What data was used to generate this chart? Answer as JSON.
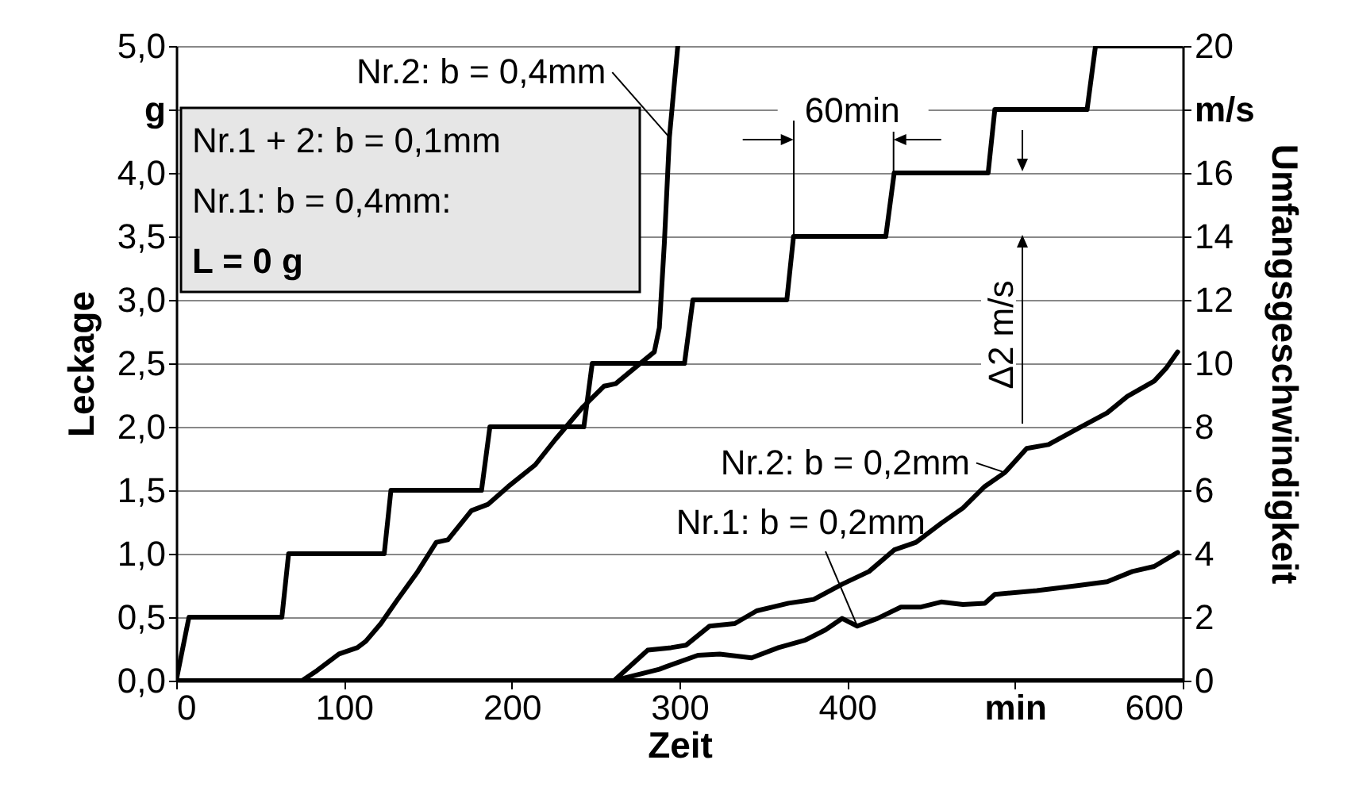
{
  "chart_data": {
    "type": "line",
    "xlabel": "Zeit",
    "ylabel": "Leckage",
    "y2label": "Umfangsgeschwindigkeit",
    "xlim": [
      0,
      600
    ],
    "xticks": [
      0,
      100,
      200,
      300,
      400,
      {
        "value": 500,
        "label": "min"
      },
      600
    ],
    "ylim": [
      0,
      5
    ],
    "yticks": [
      {
        "value": 0,
        "label": "0,0"
      },
      {
        "value": 0.5,
        "label": "0,5"
      },
      {
        "value": 1,
        "label": "1,0"
      },
      {
        "value": 1.5,
        "label": "1,5"
      },
      {
        "value": 2,
        "label": "2,0"
      },
      {
        "value": 2.5,
        "label": "2,5"
      },
      {
        "value": 3,
        "label": "3,0"
      },
      {
        "value": 3.5,
        "label": "3,5"
      },
      {
        "value": 4,
        "label": "4,0"
      },
      {
        "value": 4.5,
        "label": "g"
      },
      {
        "value": 5,
        "label": "5,0"
      }
    ],
    "y2lim": [
      0,
      20
    ],
    "y2ticks": [
      0,
      2,
      4,
      6,
      8,
      10,
      12,
      14,
      16,
      {
        "value": 18,
        "label": "m/s"
      },
      20
    ],
    "grid": "y",
    "series": [
      {
        "name": "Nr.2: b = 0,4mm",
        "color": "#000000",
        "x": [
          75,
          84,
          97,
          108,
          113,
          122,
          132,
          144,
          155,
          162,
          176,
          186,
          198,
          214,
          226,
          242,
          255,
          262,
          273,
          285,
          288,
          291,
          294,
          299
        ],
        "values": [
          0,
          0.08,
          0.21,
          0.26,
          0.31,
          0.45,
          0.64,
          0.86,
          1.09,
          1.11,
          1.34,
          1.39,
          1.53,
          1.7,
          1.9,
          2.15,
          2.32,
          2.34,
          2.46,
          2.59,
          2.78,
          3.45,
          4.28,
          5.0
        ]
      },
      {
        "name": "Nr.2: b = 0,2mm",
        "color": "#000000",
        "x": [
          261,
          276,
          281,
          295,
          304,
          318,
          333,
          346,
          365,
          380,
          397,
          413,
          428,
          441,
          456,
          469,
          482,
          494,
          507,
          520,
          538,
          555,
          567,
          583,
          590,
          597
        ],
        "values": [
          0,
          0.18,
          0.24,
          0.26,
          0.28,
          0.43,
          0.45,
          0.55,
          0.61,
          0.64,
          0.76,
          0.86,
          1.03,
          1.09,
          1.24,
          1.36,
          1.53,
          1.64,
          1.83,
          1.86,
          1.99,
          2.11,
          2.24,
          2.36,
          2.46,
          2.59
        ]
      },
      {
        "name": "Nr.1: b = 0,2mm",
        "color": "#000000",
        "x": [
          261,
          288,
          292,
          311,
          324,
          343,
          359,
          375,
          387,
          397,
          406,
          418,
          432,
          444,
          456,
          469,
          482,
          488,
          513,
          538,
          555,
          570,
          583,
          597
        ],
        "values": [
          0,
          0.09,
          0.11,
          0.2,
          0.21,
          0.18,
          0.26,
          0.32,
          0.4,
          0.49,
          0.43,
          0.49,
          0.58,
          0.58,
          0.62,
          0.6,
          0.61,
          0.68,
          0.71,
          0.75,
          0.78,
          0.86,
          0.9,
          1.01
        ]
      },
      {
        "color": "#000000",
        "x": [
          0,
          600
        ],
        "values": [
          0,
          0
        ]
      },
      {
        "color": "#000000",
        "axis": "y2",
        "x": [
          0,
          7.6,
          63,
          67,
          124,
          128,
          182,
          187,
          243,
          248,
          303,
          308,
          364,
          368,
          423,
          428,
          484,
          488,
          543,
          548,
          600
        ],
        "values": [
          0,
          2,
          2,
          4,
          4,
          6,
          6,
          8,
          8,
          10,
          10,
          12,
          12,
          14,
          14,
          16,
          16,
          18,
          18,
          20,
          20
        ]
      }
    ],
    "annotations": [
      "Nr.1 + 2: b = 0,1mm",
      "Nr.1: b = 0,4mm:",
      "L = 0 g",
      {
        "text": "60min",
        "x": 368,
        "y": 3.5
      },
      "Δ2 m/s"
    ]
  }
}
